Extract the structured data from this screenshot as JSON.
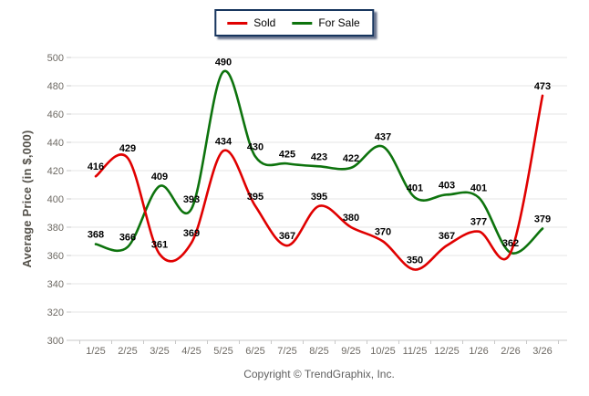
{
  "footer": {
    "copyright": "Copyright © TrendGraphix, Inc."
  },
  "colors": {
    "sold": "#e00000",
    "for_sale": "#0d730d",
    "gridline": "#e4e4e4",
    "axis_line": "#c9c9c9",
    "tick_text": "#6e6a64",
    "data_label": "#000000",
    "legend_border": "#17355e"
  },
  "chart_data": {
    "type": "line",
    "title": "",
    "xlabel": "",
    "ylabel": "Average Price (in $,000)",
    "ylim": [
      300,
      500
    ],
    "y_step": 20,
    "grid": true,
    "legend_position": "top-center",
    "smooth": true,
    "categories": [
      "1/25",
      "2/25",
      "3/25",
      "4/25",
      "5/25",
      "6/25",
      "7/25",
      "8/25",
      "9/25",
      "10/25",
      "11/25",
      "12/25",
      "1/26",
      "2/26",
      "3/26"
    ],
    "series": [
      {
        "name": "Sold",
        "color": "#e00000",
        "values": [
          416,
          429,
          361,
          369,
          434,
          395,
          367,
          395,
          380,
          370,
          350,
          367,
          377,
          362,
          473
        ],
        "labels": [
          "416",
          "429",
          "361",
          "369",
          "434",
          "395",
          "367",
          "395",
          "380",
          "370",
          "350",
          "367",
          "377",
          null,
          "473"
        ]
      },
      {
        "name": "For Sale",
        "color": "#0d730d",
        "values": [
          368,
          366,
          409,
          393,
          490,
          430,
          425,
          423,
          422,
          437,
          401,
          403,
          401,
          362,
          379
        ],
        "labels": [
          "368",
          "366",
          "409",
          "393",
          "490",
          "430",
          "425",
          "423",
          "422",
          "437",
          "401",
          "403",
          "401",
          "362",
          "379"
        ]
      }
    ]
  }
}
